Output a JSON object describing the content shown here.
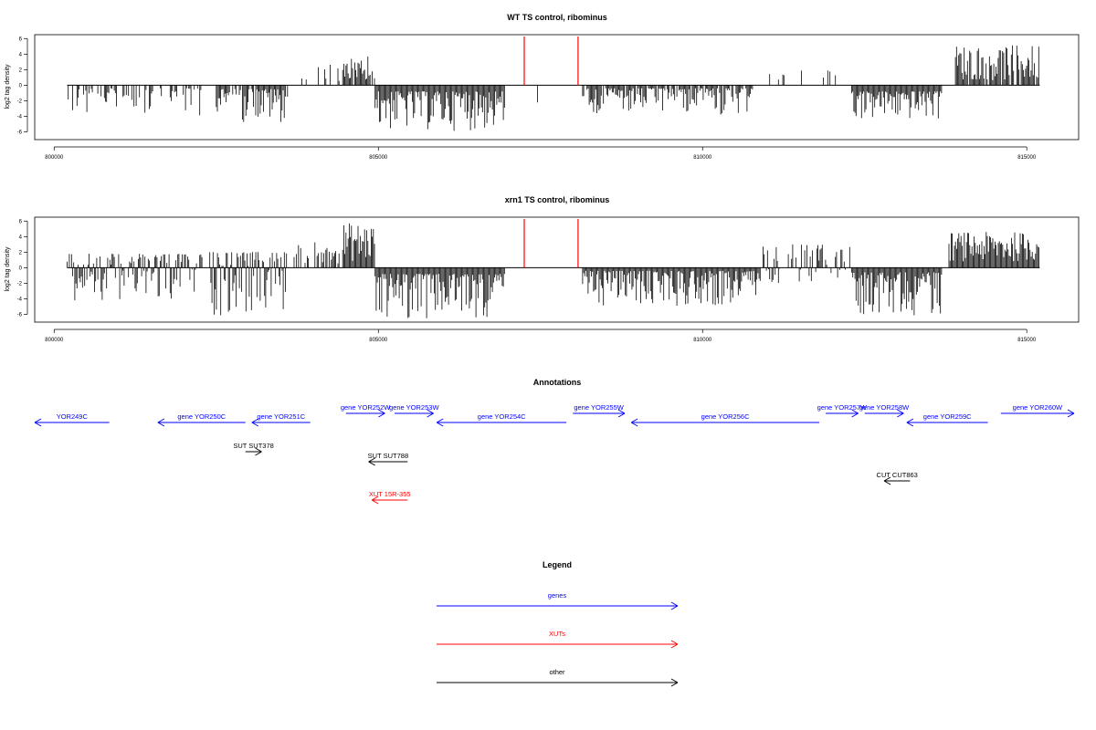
{
  "colors": {
    "gene": "#0000ff",
    "xut": "#ff0000",
    "other": "#000000",
    "marker": "#ff0000",
    "bar": "#000000"
  },
  "chart_data": [
    {
      "type": "bar",
      "title": "WT TS control, ribominus",
      "ylabel": "log2 tag density",
      "xlim": [
        799700,
        815800
      ],
      "ylim": [
        -7,
        6.5
      ],
      "xticks": [
        800000,
        805000,
        810000,
        815000
      ],
      "yticks": [
        6,
        4,
        2,
        0,
        -2,
        -4,
        -6
      ],
      "x_range": [
        800200,
        815200
      ],
      "markers_x": [
        807250,
        808080
      ],
      "segments": [
        {
          "x0": 800200,
          "x1": 802300,
          "min": -4,
          "max": -0.4,
          "density": 0.45
        },
        {
          "x0": 802500,
          "x1": 803600,
          "min": -4.8,
          "max": -0.5,
          "density": 0.85
        },
        {
          "x0": 803700,
          "x1": 804400,
          "min": 0.5,
          "max": 2.8,
          "density": 0.25
        },
        {
          "x0": 804450,
          "x1": 804950,
          "min": 0.6,
          "max": 3.9,
          "density": 0.9
        },
        {
          "x0": 804950,
          "x1": 806950,
          "min": -5.9,
          "max": -0.8,
          "density": 1.0
        },
        {
          "x0": 807300,
          "x1": 807500,
          "min": -2.5,
          "max": -0.5,
          "density": 0.2
        },
        {
          "x0": 808150,
          "x1": 810800,
          "min": -3.8,
          "max": -0.4,
          "density": 0.85
        },
        {
          "x0": 810900,
          "x1": 812200,
          "min": 0.4,
          "max": 2,
          "density": 0.12
        },
        {
          "x0": 812300,
          "x1": 813700,
          "min": -4.5,
          "max": -0.8,
          "density": 1.0
        },
        {
          "x0": 813900,
          "x1": 815200,
          "min": 0.6,
          "max": 5.2,
          "density": 0.9
        }
      ]
    },
    {
      "type": "bar",
      "title": "xrn1 TS control, ribominus",
      "ylabel": "log2 tag density",
      "xlim": [
        799700,
        815800
      ],
      "ylim": [
        -7,
        6.5
      ],
      "xticks": [
        800000,
        805000,
        810000,
        815000
      ],
      "yticks": [
        6,
        4,
        2,
        0,
        -2,
        -4,
        -6
      ],
      "x_range": [
        800200,
        815200
      ],
      "markers_x": [
        807250,
        808080
      ],
      "segments": [
        {
          "x0": 800200,
          "x1": 802300,
          "min": -4.2,
          "max": 1.8,
          "density": 0.8
        },
        {
          "x0": 802400,
          "x1": 803600,
          "min": -6.2,
          "max": 2,
          "density": 1.0
        },
        {
          "x0": 803700,
          "x1": 804400,
          "min": 0.5,
          "max": 3.3,
          "density": 0.5
        },
        {
          "x0": 804450,
          "x1": 804950,
          "min": 0.8,
          "max": 5.8,
          "density": 1.0
        },
        {
          "x0": 804950,
          "x1": 806950,
          "min": -6.6,
          "max": -0.8,
          "density": 1.0
        },
        {
          "x0": 808150,
          "x1": 810900,
          "min": -5,
          "max": -0.4,
          "density": 1.0
        },
        {
          "x0": 810900,
          "x1": 812300,
          "min": -2,
          "max": 3,
          "density": 0.6
        },
        {
          "x0": 812300,
          "x1": 813700,
          "min": -6.2,
          "max": -0.6,
          "density": 1.0
        },
        {
          "x0": 813800,
          "x1": 815200,
          "min": 0.8,
          "max": 4.6,
          "density": 1.0
        }
      ]
    }
  ],
  "annotations": {
    "title": "Annotations",
    "xlim": [
      799700,
      815800
    ],
    "items": [
      {
        "label": "YOR249C",
        "kind": "gene",
        "strand": "-",
        "x0": 799700,
        "x1": 800850,
        "row": 1
      },
      {
        "label": "gene YOR250C",
        "kind": "gene",
        "strand": "-",
        "x0": 801600,
        "x1": 802950,
        "row": 1
      },
      {
        "label": "gene YOR251C",
        "kind": "gene",
        "strand": "-",
        "x0": 803050,
        "x1": 803950,
        "row": 1
      },
      {
        "label": "gene YOR252W",
        "kind": "gene",
        "strand": "+",
        "x0": 804500,
        "x1": 805100,
        "row": 0
      },
      {
        "label": "gene YOR253W",
        "kind": "gene",
        "strand": "+",
        "x0": 805250,
        "x1": 805850,
        "row": 0
      },
      {
        "label": "gene YOR254C",
        "kind": "gene",
        "strand": "-",
        "x0": 805900,
        "x1": 807900,
        "row": 1
      },
      {
        "label": "gene YOR255W",
        "kind": "gene",
        "strand": "+",
        "x0": 808000,
        "x1": 808800,
        "row": 0
      },
      {
        "label": "gene YOR256C",
        "kind": "gene",
        "strand": "-",
        "x0": 808900,
        "x1": 811800,
        "row": 1
      },
      {
        "label": "gene YOR257W",
        "kind": "gene",
        "strand": "+",
        "x0": 811900,
        "x1": 812400,
        "row": 0
      },
      {
        "label": "gene YOR258W",
        "kind": "gene",
        "strand": "+",
        "x0": 812500,
        "x1": 813100,
        "row": 0
      },
      {
        "label": "gene YOR259C",
        "kind": "gene",
        "strand": "-",
        "x0": 813150,
        "x1": 814400,
        "row": 1
      },
      {
        "label": "gene YOR260W",
        "kind": "gene",
        "strand": "+",
        "x0": 814600,
        "x1": 816400,
        "row": 0
      },
      {
        "label": "SUT SUT378",
        "kind": "other",
        "strand": "+",
        "x0": 802950,
        "x1": 803200,
        "row": 2
      },
      {
        "label": "SUT SUT788",
        "kind": "other",
        "strand": "-",
        "x0": 804850,
        "x1": 805450,
        "row": 3
      },
      {
        "label": "CUT CUT863",
        "kind": "other",
        "strand": "-",
        "x0": 812800,
        "x1": 813200,
        "row": 4
      },
      {
        "label": "XUT 15R-355",
        "kind": "xut",
        "strand": "-",
        "x0": 804900,
        "x1": 805450,
        "row": 5
      }
    ]
  },
  "legend": {
    "title": "Legend",
    "items": [
      {
        "label": "genes",
        "kind": "gene"
      },
      {
        "label": "XUTs",
        "kind": "xut"
      },
      {
        "label": "other",
        "kind": "other"
      }
    ]
  }
}
